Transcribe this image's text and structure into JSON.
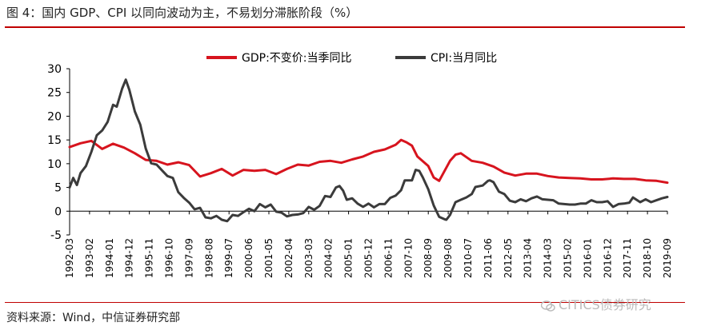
{
  "title": "图 4：国内 GDP、CPI 以同向波动为主，不易划分滞胀阶段（%）",
  "source": "资料来源：Wind，中信证券研究部",
  "watermark": "CITICS债券研究",
  "colors": {
    "gdp": "#d7141e",
    "cpi": "#3b3b3b",
    "accent": "#c00000"
  },
  "chart_data": {
    "type": "line",
    "title": "",
    "xlabel": "",
    "ylabel": "",
    "ylim": [
      -5,
      30
    ],
    "yticks": [
      -5,
      0,
      5,
      10,
      15,
      20,
      25,
      30
    ],
    "x_range": [
      "1992-03",
      "2019-09"
    ],
    "xticks": [
      "1992-03",
      "1993-02",
      "1994-01",
      "1994-12",
      "1995-11",
      "1996-10",
      "1997-09",
      "1998-08",
      "1999-07",
      "2000-06",
      "2001-05",
      "2002-04",
      "2003-03",
      "2004-02",
      "2005-01",
      "2005-12",
      "2006-11",
      "2007-10",
      "2008-09",
      "2009-08",
      "2010-07",
      "2011-06",
      "2012-05",
      "2013-04",
      "2014-03",
      "2015-02",
      "2016-01",
      "2016-12",
      "2017-11",
      "2018-10",
      "2019-09"
    ],
    "grid": false,
    "legend": "top-center",
    "series": [
      {
        "name": "GDP:不变价:当季同比",
        "points": [
          [
            "1992-03",
            13.5
          ],
          [
            "1992-09",
            14.3
          ],
          [
            "1993-03",
            14.8
          ],
          [
            "1993-09",
            13.1
          ],
          [
            "1994-03",
            14.2
          ],
          [
            "1994-09",
            13.4
          ],
          [
            "1995-03",
            12.2
          ],
          [
            "1995-09",
            10.8
          ],
          [
            "1996-03",
            10.6
          ],
          [
            "1996-09",
            9.8
          ],
          [
            "1997-03",
            10.3
          ],
          [
            "1997-09",
            9.7
          ],
          [
            "1998-03",
            7.3
          ],
          [
            "1998-09",
            8.0
          ],
          [
            "1999-03",
            8.9
          ],
          [
            "1999-09",
            7.5
          ],
          [
            "2000-03",
            8.7
          ],
          [
            "2000-09",
            8.5
          ],
          [
            "2001-03",
            8.7
          ],
          [
            "2001-09",
            7.8
          ],
          [
            "2002-03",
            8.9
          ],
          [
            "2002-09",
            9.8
          ],
          [
            "2003-03",
            9.6
          ],
          [
            "2003-09",
            10.4
          ],
          [
            "2004-03",
            10.6
          ],
          [
            "2004-09",
            10.2
          ],
          [
            "2005-03",
            10.9
          ],
          [
            "2005-09",
            11.5
          ],
          [
            "2006-03",
            12.5
          ],
          [
            "2006-09",
            13.0
          ],
          [
            "2007-03",
            14.0
          ],
          [
            "2007-06",
            15.0
          ],
          [
            "2007-09",
            14.5
          ],
          [
            "2007-12",
            13.8
          ],
          [
            "2008-03",
            11.5
          ],
          [
            "2008-09",
            9.5
          ],
          [
            "2008-12",
            7.1
          ],
          [
            "2009-03",
            6.4
          ],
          [
            "2009-09",
            10.6
          ],
          [
            "2009-12",
            11.9
          ],
          [
            "2010-03",
            12.2
          ],
          [
            "2010-09",
            10.6
          ],
          [
            "2011-03",
            10.2
          ],
          [
            "2011-09",
            9.4
          ],
          [
            "2012-03",
            8.1
          ],
          [
            "2012-09",
            7.5
          ],
          [
            "2013-03",
            7.9
          ],
          [
            "2013-09",
            7.9
          ],
          [
            "2014-03",
            7.4
          ],
          [
            "2014-09",
            7.1
          ],
          [
            "2015-03",
            7.0
          ],
          [
            "2015-09",
            6.9
          ],
          [
            "2016-03",
            6.7
          ],
          [
            "2016-09",
            6.7
          ],
          [
            "2017-03",
            6.9
          ],
          [
            "2017-09",
            6.8
          ],
          [
            "2018-03",
            6.8
          ],
          [
            "2018-09",
            6.5
          ],
          [
            "2019-03",
            6.4
          ],
          [
            "2019-09",
            6.0
          ]
        ]
      },
      {
        "name": "CPI:当月同比",
        "points": [
          [
            "1992-03",
            5.0
          ],
          [
            "1992-05",
            7.0
          ],
          [
            "1992-07",
            5.5
          ],
          [
            "1992-09",
            8.0
          ],
          [
            "1992-12",
            9.5
          ],
          [
            "1993-03",
            12.5
          ],
          [
            "1993-06",
            16.0
          ],
          [
            "1993-09",
            17.0
          ],
          [
            "1993-12",
            18.8
          ],
          [
            "1994-03",
            22.4
          ],
          [
            "1994-05",
            22.0
          ],
          [
            "1994-08",
            25.8
          ],
          [
            "1994-10",
            27.7
          ],
          [
            "1994-12",
            25.5
          ],
          [
            "1995-03",
            21.0
          ],
          [
            "1995-06",
            18.2
          ],
          [
            "1995-09",
            13.2
          ],
          [
            "1995-12",
            10.1
          ],
          [
            "1996-03",
            9.8
          ],
          [
            "1996-06",
            8.6
          ],
          [
            "1996-09",
            7.4
          ],
          [
            "1996-12",
            7.0
          ],
          [
            "1997-03",
            4.0
          ],
          [
            "1997-06",
            2.8
          ],
          [
            "1997-09",
            1.8
          ],
          [
            "1997-12",
            0.4
          ],
          [
            "1998-03",
            0.7
          ],
          [
            "1998-06",
            -1.3
          ],
          [
            "1998-09",
            -1.5
          ],
          [
            "1998-12",
            -1.0
          ],
          [
            "1999-03",
            -1.8
          ],
          [
            "1999-06",
            -2.1
          ],
          [
            "1999-09",
            -0.8
          ],
          [
            "1999-12",
            -1.0
          ],
          [
            "2000-03",
            -0.2
          ],
          [
            "2000-06",
            0.5
          ],
          [
            "2000-09",
            0.0
          ],
          [
            "2000-12",
            1.5
          ],
          [
            "2001-03",
            0.8
          ],
          [
            "2001-06",
            1.4
          ],
          [
            "2001-09",
            -0.1
          ],
          [
            "2001-12",
            -0.3
          ],
          [
            "2002-03",
            -1.1
          ],
          [
            "2002-06",
            -0.8
          ],
          [
            "2002-09",
            -0.7
          ],
          [
            "2002-12",
            -0.4
          ],
          [
            "2003-03",
            0.9
          ],
          [
            "2003-06",
            0.3
          ],
          [
            "2003-09",
            1.1
          ],
          [
            "2003-12",
            3.2
          ],
          [
            "2004-03",
            3.0
          ],
          [
            "2004-06",
            5.0
          ],
          [
            "2004-08",
            5.3
          ],
          [
            "2004-10",
            4.3
          ],
          [
            "2004-12",
            2.4
          ],
          [
            "2005-03",
            2.7
          ],
          [
            "2005-06",
            1.6
          ],
          [
            "2005-09",
            0.9
          ],
          [
            "2005-12",
            1.6
          ],
          [
            "2006-03",
            0.8
          ],
          [
            "2006-06",
            1.5
          ],
          [
            "2006-09",
            1.5
          ],
          [
            "2006-12",
            2.8
          ],
          [
            "2007-03",
            3.3
          ],
          [
            "2007-06",
            4.4
          ],
          [
            "2007-08",
            6.5
          ],
          [
            "2007-10",
            6.5
          ],
          [
            "2007-12",
            6.5
          ],
          [
            "2008-02",
            8.7
          ],
          [
            "2008-04",
            8.5
          ],
          [
            "2008-06",
            7.1
          ],
          [
            "2008-09",
            4.6
          ],
          [
            "2008-12",
            1.2
          ],
          [
            "2009-03",
            -1.2
          ],
          [
            "2009-06",
            -1.7
          ],
          [
            "2009-07",
            -1.8
          ],
          [
            "2009-09",
            -0.8
          ],
          [
            "2009-12",
            1.9
          ],
          [
            "2010-03",
            2.4
          ],
          [
            "2010-06",
            2.9
          ],
          [
            "2010-09",
            3.6
          ],
          [
            "2010-11",
            5.1
          ],
          [
            "2011-03",
            5.4
          ],
          [
            "2011-06",
            6.4
          ],
          [
            "2011-07",
            6.5
          ],
          [
            "2011-09",
            6.1
          ],
          [
            "2011-12",
            4.1
          ],
          [
            "2012-03",
            3.6
          ],
          [
            "2012-06",
            2.2
          ],
          [
            "2012-09",
            1.9
          ],
          [
            "2012-12",
            2.5
          ],
          [
            "2013-03",
            2.1
          ],
          [
            "2013-06",
            2.7
          ],
          [
            "2013-09",
            3.1
          ],
          [
            "2013-12",
            2.5
          ],
          [
            "2014-03",
            2.4
          ],
          [
            "2014-06",
            2.3
          ],
          [
            "2014-09",
            1.6
          ],
          [
            "2014-12",
            1.5
          ],
          [
            "2015-03",
            1.4
          ],
          [
            "2015-06",
            1.4
          ],
          [
            "2015-09",
            1.6
          ],
          [
            "2015-12",
            1.6
          ],
          [
            "2016-03",
            2.3
          ],
          [
            "2016-06",
            1.9
          ],
          [
            "2016-09",
            1.9
          ],
          [
            "2016-12",
            2.1
          ],
          [
            "2017-03",
            0.9
          ],
          [
            "2017-06",
            1.5
          ],
          [
            "2017-09",
            1.6
          ],
          [
            "2017-12",
            1.8
          ],
          [
            "2018-02",
            2.9
          ],
          [
            "2018-06",
            1.9
          ],
          [
            "2018-09",
            2.5
          ],
          [
            "2018-12",
            1.9
          ],
          [
            "2019-03",
            2.3
          ],
          [
            "2019-06",
            2.7
          ],
          [
            "2019-09",
            3.0
          ]
        ]
      }
    ]
  }
}
